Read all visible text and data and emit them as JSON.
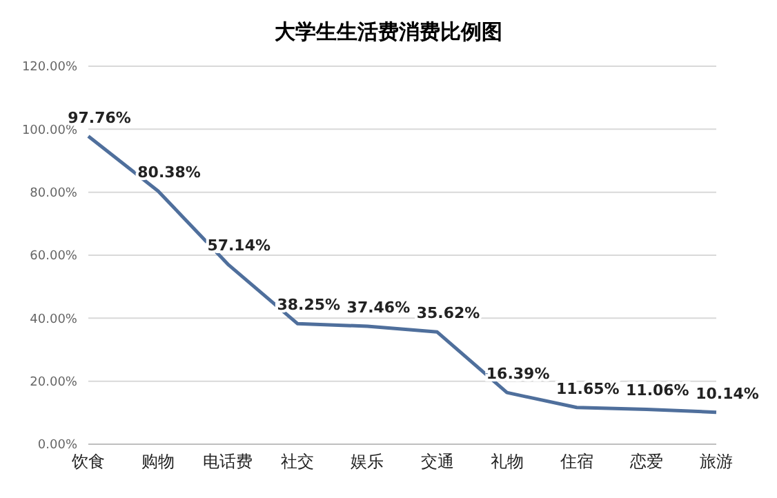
{
  "chart_data": {
    "type": "line",
    "title": "大学生生活费消费比例图",
    "categories": [
      "饮食",
      "购物",
      "电话费",
      "社交",
      "娱乐",
      "交通",
      "礼物",
      "住宿",
      "恋爱",
      "旅游"
    ],
    "series": [
      {
        "color": "#4f6f9c",
        "values": [
          97.76,
          80.38,
          57.14,
          38.25,
          37.46,
          35.62,
          16.39,
          11.65,
          11.06,
          10.14
        ],
        "value_labels": [
          "97.76%",
          "80.38%",
          "57.14%",
          "38.25%",
          "37.46%",
          "35.62%",
          "16.39%",
          "11.65%",
          "11.06%",
          "10.14%"
        ]
      }
    ],
    "ylim": [
      0,
      120
    ],
    "yticks": [
      {
        "value": 0,
        "label": "0.00%"
      },
      {
        "value": 20,
        "label": "20.00%"
      },
      {
        "value": 40,
        "label": "40.00%"
      },
      {
        "value": 60,
        "label": "60.00%"
      },
      {
        "value": 80,
        "label": "80.00%"
      },
      {
        "value": 100,
        "label": "100.00%"
      },
      {
        "value": 120,
        "label": "120.00%"
      }
    ],
    "grid": "y",
    "legend": false,
    "marker": "none",
    "line_style": "solid"
  }
}
